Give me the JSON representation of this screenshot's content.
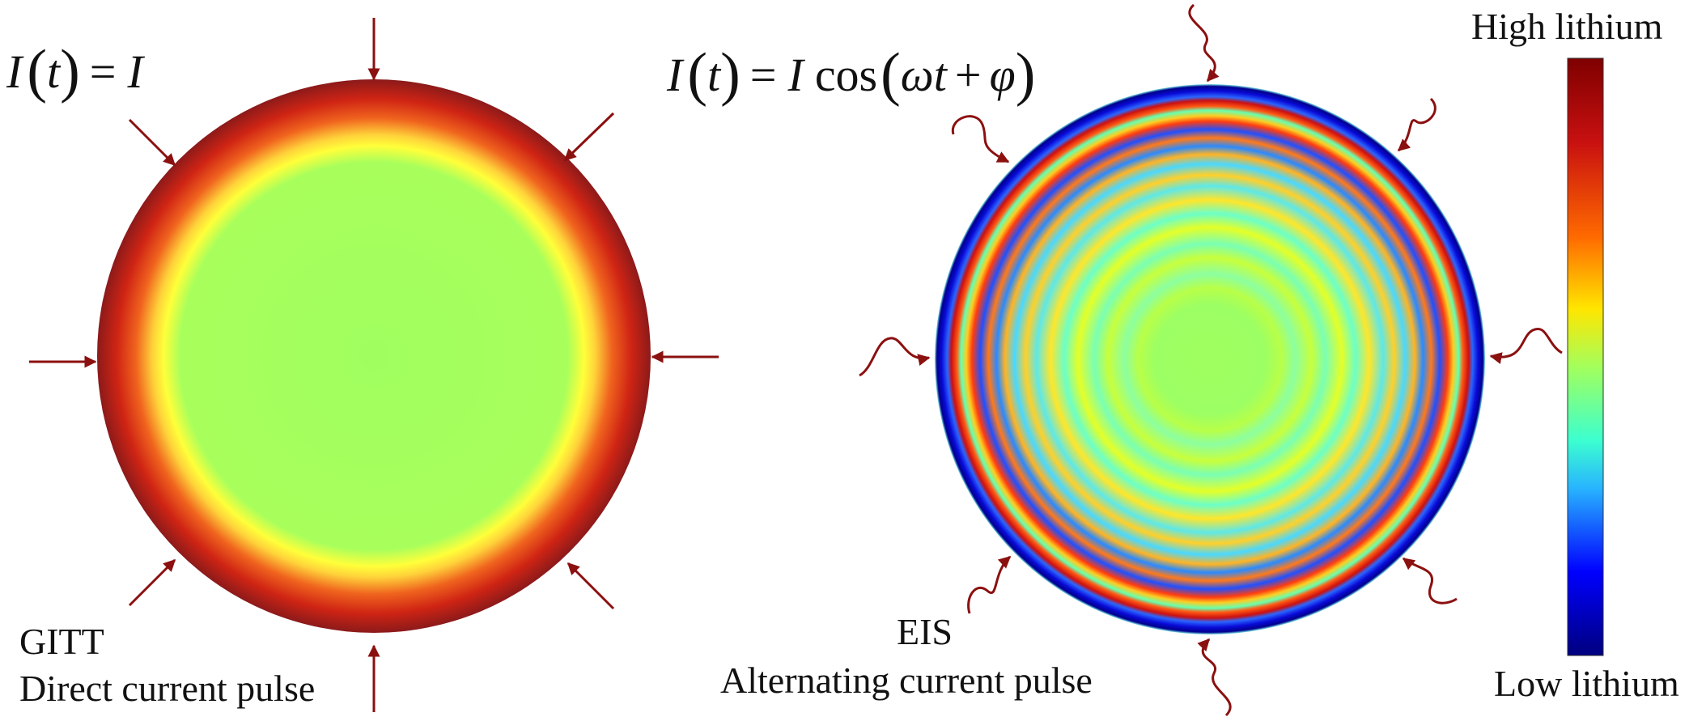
{
  "left_panel": {
    "equation": {
      "lhs": "I",
      "var": "t",
      "equals": "=",
      "rhs": "I"
    },
    "method": "GITT",
    "description": "Direct current pulse"
  },
  "right_panel": {
    "equation": {
      "lhs": "I",
      "var": "t",
      "equals": "=",
      "amp": "I",
      "func": "cos",
      "omega": "ω",
      "t": "t",
      "plus": "+",
      "phi": "φ"
    },
    "method": "EIS",
    "description": "Alternating current pulse"
  },
  "colorbar": {
    "top_label": "High lithium",
    "bottom_label": "Low lithium",
    "colormap": [
      "#00007f",
      "#0000ff",
      "#00ffff",
      "#a0ff5f",
      "#ffff00",
      "#ff0000",
      "#7f0000"
    ]
  },
  "colors": {
    "arrow": "#8b1010",
    "particle_core": "#a0ff5f",
    "particle_shell": "#b81c14"
  },
  "icons": {
    "dc_arrow": "straight-arrow-icon",
    "ac_arrow": "wavy-arrow-icon"
  }
}
